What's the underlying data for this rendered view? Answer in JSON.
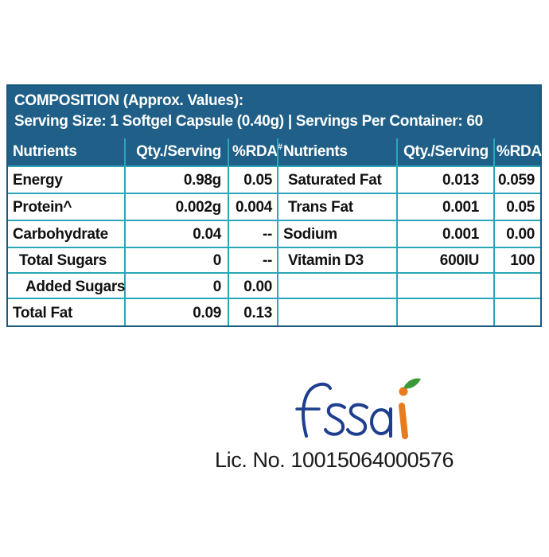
{
  "composition": {
    "title": "COMPOSITION (Approx. Values):",
    "serving_line": "Serving Size: 1 Softgel Capsule (0.40g) | Servings Per Container: 60"
  },
  "table": {
    "headers": {
      "nutrients": "Nutrients",
      "qty": "Qty./Serving",
      "rda": "%RDA",
      "rda_mark": "#",
      "nutrients2": "Nutrients",
      "qty2": "Qty./Serving",
      "rda2": "%RDA",
      "rda2_mark": "#"
    },
    "left_rows": [
      {
        "name": "Energy",
        "qty": "0.98g",
        "rda": "0.05"
      },
      {
        "name": "Protein^",
        "qty": "0.002g",
        "rda": "0.004"
      },
      {
        "name": "Carbohydrate",
        "qty": "0.04",
        "rda": "--"
      },
      {
        "name": "Total Sugars",
        "qty": "0",
        "rda": "--"
      },
      {
        "name": "Added Sugars",
        "qty": "0",
        "rda": "0.00"
      },
      {
        "name": "Total Fat",
        "qty": "0.09",
        "rda": "0.13"
      }
    ],
    "right_rows": [
      {
        "name": "Saturated Fat",
        "qty": "0.013",
        "rda": "0.059"
      },
      {
        "name": "Trans Fat",
        "qty": "0.001",
        "rda": "0.05"
      },
      {
        "name": "Sodium",
        "qty": "0.001",
        "rda": "0.00"
      },
      {
        "name": "Vitamin D3",
        "qty": "600IU",
        "rda": "100"
      },
      {
        "name": "",
        "qty": "",
        "rda": ""
      },
      {
        "name": "",
        "qty": "",
        "rda": ""
      }
    ]
  },
  "fssai": {
    "logo_text": "fssai",
    "colors": {
      "blue": "#1e3f8f",
      "orange": "#e87b1e",
      "green": "#3a9a3a"
    },
    "license": "Lic. No. 10015064000576"
  }
}
